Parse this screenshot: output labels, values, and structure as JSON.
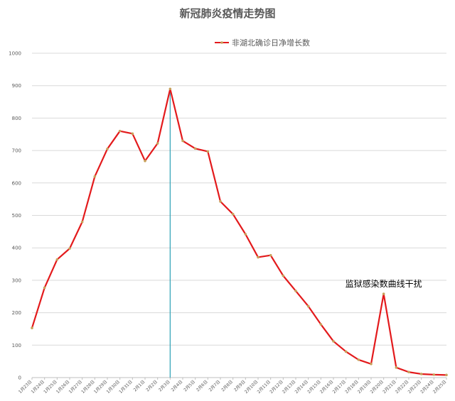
{
  "chart_data": {
    "type": "line",
    "title": "新冠肺炎疫情走势图",
    "legend": {
      "position": "top-right",
      "entries": [
        "非湖北确诊日净增长数"
      ]
    },
    "ylim": [
      0,
      1000
    ],
    "yticks": [
      0,
      100,
      200,
      300,
      400,
      500,
      600,
      700,
      800,
      900,
      1000
    ],
    "grid": true,
    "x": [
      "1月23日",
      "1月24日",
      "1月25日",
      "1月26日",
      "1月27日",
      "1月28日",
      "1月29日",
      "1月30日",
      "1月31日",
      "2月1日",
      "2月2日",
      "2月3日",
      "2月4日",
      "2月5日",
      "2月6日",
      "2月7日",
      "2月8日",
      "2月9日",
      "2月10日",
      "2月11日",
      "2月12日",
      "2月13日",
      "2月14日",
      "2月15日",
      "2月16日",
      "2月17日",
      "2月18日",
      "2月19日",
      "2月20日",
      "2月21日",
      "2月22日",
      "2月23日",
      "2月24日",
      "2月25日"
    ],
    "x_tick_labels": [
      "1月23日",
      "1月24日",
      "1月25日",
      "1月26日",
      "1月27日",
      "1月28日",
      "1月29日",
      "1月30日",
      "1月31日",
      "2月1日",
      "2月2日",
      "2月3日",
      "2月4日",
      "2月5日",
      "2月6日",
      "2月7日",
      "2月8日",
      "2月9日",
      "2月10日",
      "2月11日",
      "2月12日",
      "2月13日",
      "2月14日",
      "2月15日",
      "2月16日",
      "2月17日",
      "2月18日",
      "2月19日",
      "2月20日",
      "2月21日",
      "2月22日",
      "2月23日",
      "2月24日",
      "2月25日"
    ],
    "series": [
      {
        "name": "非湖北确诊日净增长数",
        "color": "#e31a1c",
        "marker_color": "#c7a15a",
        "values": [
          153,
          277,
          364,
          398,
          480,
          620,
          705,
          760,
          752,
          668,
          722,
          890,
          730,
          706,
          697,
          543,
          504,
          442,
          371,
          377,
          314,
          267,
          220,
          164,
          112,
          80,
          55,
          42,
          258,
          31,
          17,
          11,
          9,
          8
        ]
      }
    ],
    "reference_line": {
      "at": "2月3日",
      "color": "#2aa0b5"
    },
    "annotations": [
      {
        "text": "监狱感染数曲线干扰",
        "at": "2月20日",
        "y": 280
      }
    ]
  }
}
